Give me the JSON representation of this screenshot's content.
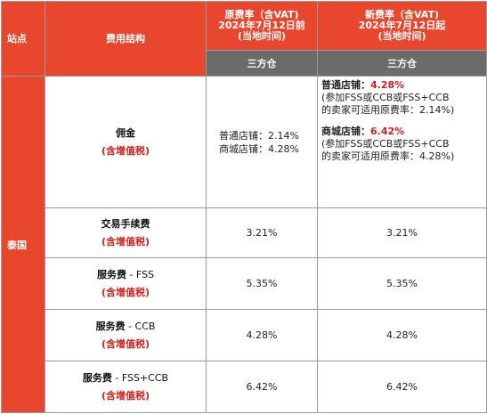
{
  "headers": {
    "station": "站点",
    "fee_structure": "费用结构",
    "old_rate": {
      "line1": "原费率（含VAT)",
      "line2": "2024年7月12日前",
      "line3": "(当地时间)"
    },
    "new_rate": {
      "line1": "新费率（含VAT)",
      "line2": "2024年7月12日起",
      "line3": "(当地时间)"
    },
    "old_sub": "三方仓",
    "new_sub": "三方仓"
  },
  "region": "泰国",
  "commission": {
    "name": "佣金",
    "tax": "(含增值税)",
    "old": {
      "line1": "普通店铺：2.14%",
      "line2": "商城店铺：4.28%"
    },
    "new": {
      "normal_label": "普通店铺：",
      "normal_rate": "4.28%",
      "normal_note1": "(参加FSS或CCB或FSS+CCB",
      "normal_note2": "的卖家可适用原费率：2.14%)",
      "mall_label": "商城店铺：",
      "mall_rate": "6.42%",
      "mall_note1": "(参加FSS或CCB或FSS+CCB",
      "mall_note2": "的卖家可适用原费率：4.28%)"
    }
  },
  "rows": [
    {
      "name": "交易手续费",
      "tax": "(含增值税)",
      "old": "3.21%",
      "new": "3.21%"
    },
    {
      "name_bold": "服务费",
      "name_rest": " - FSS",
      "tax": "(含增值税)",
      "old": "5.35%",
      "new": "5.35%"
    },
    {
      "name_bold": "服务费",
      "name_rest": " - CCB",
      "tax": "(含增值税)",
      "old": "4.28%",
      "new": "4.28%"
    },
    {
      "name_bold": "服务费",
      "name_rest": " - FSS+CCB",
      "tax": "(含增值税)",
      "old": "6.42%",
      "new": "6.42%"
    }
  ]
}
